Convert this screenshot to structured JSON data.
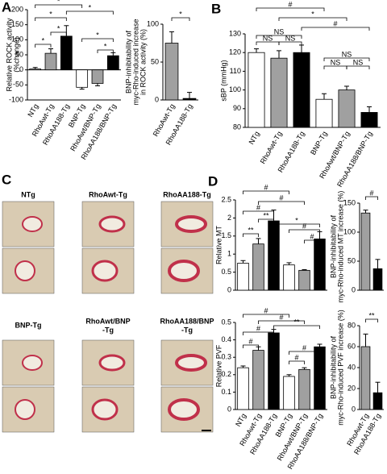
{
  "panel_labels": [
    "A",
    "B",
    "C",
    "D"
  ],
  "micrographs": {
    "labels": [
      [
        "NTg"
      ],
      [
        "RhoAwt-Tg"
      ],
      [
        "RhoAA188-Tg"
      ],
      [
        "BNP-Tg"
      ],
      [
        "RhoAwt/BNP",
        "-Tg"
      ],
      [
        "RhoAA188/BNP",
        "-Tg"
      ]
    ]
  },
  "chart_data": [
    {
      "type": "bar",
      "ylabel": [
        "Relative ROCK activity",
        "(%change)"
      ],
      "categories": [
        "NTg",
        "RhoAwt-Tg",
        "RhoAA188-Tg",
        "BNP-Tg",
        "RhoAwt/BNP-Tg",
        "RhoAA188/BNP-Tg"
      ],
      "values": [
        3,
        55,
        112,
        -58,
        -45,
        47
      ],
      "errors": [
        5,
        15,
        35,
        6,
        8,
        10
      ],
      "colors": [
        "#ffffff",
        "#a0a0a0",
        "#000000",
        "#ffffff",
        "#a0a0a0",
        "#000000"
      ],
      "ylim": [
        -100,
        200
      ],
      "yticks": [
        -100,
        -50,
        0,
        50,
        100,
        150,
        200
      ],
      "annotations": [
        "*",
        "*",
        "*",
        "*",
        "*",
        "*",
        "*"
      ]
    },
    {
      "type": "bar",
      "ylabel": [
        "BNP-inhibitability of",
        "myc-Rho-induced increase",
        "in ROCK activity (%)"
      ],
      "categories": [
        "RhoAwt-Tg",
        "RhoAA188-Tg"
      ],
      "values": [
        75,
        2
      ],
      "errors": [
        15,
        8
      ],
      "colors": [
        "#a0a0a0",
        "#000000"
      ],
      "ylim": [
        0,
        100
      ],
      "yticks": [
        0,
        50,
        100
      ],
      "annotations": [
        "*"
      ]
    },
    {
      "type": "bar",
      "ylabel": [
        "sBP (mmHg)"
      ],
      "categories": [
        "NTg",
        "RhoAwt-Tg",
        "RhoAA188-Tg",
        "BNP-Tg",
        "RhoAwt/BNP-Tg",
        "RhoAA188/BNP-Tg"
      ],
      "values": [
        120,
        117,
        120,
        95,
        100,
        88
      ],
      "errors": [
        2,
        4,
        4,
        3,
        2,
        3
      ],
      "colors": [
        "#ffffff",
        "#a0a0a0",
        "#000000",
        "#ffffff",
        "#a0a0a0",
        "#000000"
      ],
      "ylim": [
        80,
        130
      ],
      "yticks": [
        80,
        90,
        100,
        110,
        120,
        130
      ],
      "annotations": [
        "#",
        "*",
        "#",
        "NS",
        "NS",
        "NS",
        "NS",
        "NS",
        "NS"
      ]
    },
    {
      "type": "bar",
      "ylabel": [
        "Relative MT"
      ],
      "categories": [
        null,
        null,
        null,
        null,
        null,
        null
      ],
      "values": [
        0.75,
        1.28,
        1.92,
        0.7,
        0.55,
        1.42
      ],
      "errors": [
        0.07,
        0.15,
        0.3,
        0.06,
        0.02,
        0.2
      ],
      "colors": [
        "#ffffff",
        "#a0a0a0",
        "#000000",
        "#ffffff",
        "#a0a0a0",
        "#000000"
      ],
      "ylim": [
        0,
        2.5
      ],
      "yticks": [
        0,
        0.5,
        1,
        1.5,
        2,
        2.5
      ],
      "annotations": [
        "#",
        "#",
        "#",
        "**",
        "**",
        "#",
        "#",
        "*"
      ]
    },
    {
      "type": "bar",
      "ylabel": [
        "BNP-inhibitability of",
        "myc-Rho-induced MT increase (%)"
      ],
      "categories": [
        null,
        null
      ],
      "values": [
        133,
        37
      ],
      "errors": [
        5,
        16
      ],
      "colors": [
        "#a0a0a0",
        "#000000"
      ],
      "ylim": [
        0,
        150
      ],
      "yticks": [
        0,
        50,
        100,
        150
      ],
      "annotations": [
        "#"
      ]
    },
    {
      "type": "bar",
      "ylabel": [
        "Relative PVF"
      ],
      "categories": [
        "NTg",
        "RhoAwt-Tg",
        "RhoAA188-Tg",
        "BNP-Tg",
        "RhoAwt/BNP-Tg",
        "RhoAA188/BNP-Tg"
      ],
      "values": [
        0.24,
        0.34,
        0.44,
        0.19,
        0.23,
        0.36
      ],
      "errors": [
        0.01,
        0.02,
        0.02,
        0.01,
        0.01,
        0.015
      ],
      "colors": [
        "#ffffff",
        "#a0a0a0",
        "#000000",
        "#ffffff",
        "#a0a0a0",
        "#000000"
      ],
      "ylim": [
        0,
        0.5
      ],
      "yticks": [
        0,
        0.1,
        0.2,
        0.3,
        0.4,
        0.5
      ],
      "annotations": [
        "#",
        "#",
        "#",
        "#",
        "#",
        "#",
        "**"
      ]
    },
    {
      "type": "bar",
      "ylabel": [
        "BNP-inhibitability of",
        "myc-Rho-induced PVF increase (%)"
      ],
      "categories": [
        "RhoAwt-Tg",
        "RhoAA188-Tg"
      ],
      "values": [
        60,
        16
      ],
      "errors": [
        12,
        10
      ],
      "colors": [
        "#a0a0a0",
        "#000000"
      ],
      "ylim": [
        0,
        80
      ],
      "yticks": [
        0,
        20,
        40,
        60,
        80
      ],
      "annotations": [
        "**"
      ]
    }
  ]
}
